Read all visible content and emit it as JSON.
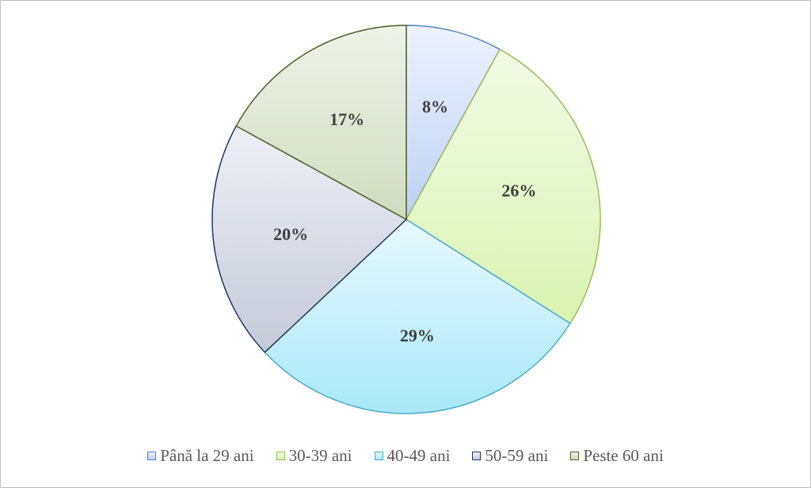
{
  "chart_data": {
    "type": "pie",
    "title": "",
    "categories": [
      "Până la 29 ani",
      "30-39 ani",
      "40-49 ani",
      "50-59 ani",
      "Peste 60 ani"
    ],
    "values": [
      8,
      26,
      29,
      20,
      17
    ],
    "labels": [
      "8%",
      "26%",
      "29%",
      "20%",
      "17%"
    ],
    "start_angle_deg": 0,
    "direction": "clockwise",
    "legend_position": "bottom",
    "colors": [
      {
        "fill_start": "#eef3fd",
        "fill_end": "#bcd0f5",
        "stroke": "#4f81bd"
      },
      {
        "fill_start": "#f2fbe6",
        "fill_end": "#d9f3b0",
        "stroke": "#9bbb59"
      },
      {
        "fill_start": "#e8f9fd",
        "fill_end": "#a8e8f8",
        "stroke": "#4bacc6"
      },
      {
        "fill_start": "#eef0f5",
        "fill_end": "#c5cad8",
        "stroke": "#1f3864"
      },
      {
        "fill_start": "#eef2e8",
        "fill_end": "#d0dcc0",
        "stroke": "#4f6228"
      }
    ]
  }
}
